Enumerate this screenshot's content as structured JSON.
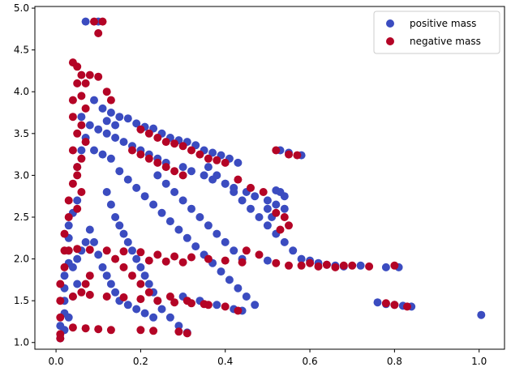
{
  "chart_data": {
    "type": "scatter",
    "title": "",
    "xlabel": "",
    "ylabel": "",
    "xlim": [
      -0.05,
      1.06
    ],
    "ylim": [
      0.92,
      5.02
    ],
    "xticks": [
      0.0,
      0.2,
      0.4,
      0.6,
      0.8,
      1.0
    ],
    "xtick_labels": [
      "0.0",
      "0.2",
      "0.4",
      "0.6",
      "0.8",
      "1.0"
    ],
    "yticks": [
      1.0,
      1.5,
      2.0,
      2.5,
      3.0,
      3.5,
      4.0,
      4.5,
      5.0
    ],
    "ytick_labels": [
      "1.0",
      "1.5",
      "2.0",
      "2.5",
      "3.0",
      "3.5",
      "4.0",
      "4.5",
      "5.0"
    ],
    "grid": false,
    "legend_position": "top-right",
    "series": [
      {
        "name": "positive mass",
        "color": "#3b4cc0",
        "points": [
          [
            0.07,
            4.84
          ],
          [
            0.1,
            4.84
          ],
          [
            0.09,
            3.9
          ],
          [
            0.11,
            3.8
          ],
          [
            0.13,
            3.75
          ],
          [
            0.15,
            3.7
          ],
          [
            0.17,
            3.68
          ],
          [
            0.19,
            3.62
          ],
          [
            0.21,
            3.58
          ],
          [
            0.23,
            3.56
          ],
          [
            0.25,
            3.5
          ],
          [
            0.27,
            3.45
          ],
          [
            0.29,
            3.42
          ],
          [
            0.31,
            3.4
          ],
          [
            0.33,
            3.36
          ],
          [
            0.35,
            3.3
          ],
          [
            0.37,
            3.27
          ],
          [
            0.39,
            3.24
          ],
          [
            0.41,
            3.2
          ],
          [
            0.43,
            3.15
          ],
          [
            0.08,
            3.6
          ],
          [
            0.1,
            3.55
          ],
          [
            0.12,
            3.5
          ],
          [
            0.14,
            3.45
          ],
          [
            0.16,
            3.4
          ],
          [
            0.18,
            3.35
          ],
          [
            0.2,
            3.3
          ],
          [
            0.22,
            3.25
          ],
          [
            0.24,
            3.2
          ],
          [
            0.26,
            3.15
          ],
          [
            0.09,
            3.3
          ],
          [
            0.11,
            3.25
          ],
          [
            0.13,
            3.2
          ],
          [
            0.07,
            3.45
          ],
          [
            0.06,
            3.3
          ],
          [
            0.05,
            3.1
          ],
          [
            0.06,
            3.7
          ],
          [
            0.12,
            3.65
          ],
          [
            0.14,
            3.6
          ],
          [
            0.53,
            3.3
          ],
          [
            0.55,
            3.27
          ],
          [
            0.58,
            3.24
          ],
          [
            0.3,
            3.1
          ],
          [
            0.32,
            3.05
          ],
          [
            0.35,
            3.0
          ],
          [
            0.37,
            2.95
          ],
          [
            0.4,
            2.9
          ],
          [
            0.42,
            2.85
          ],
          [
            0.45,
            2.8
          ],
          [
            0.47,
            2.75
          ],
          [
            0.5,
            2.7
          ],
          [
            0.52,
            2.65
          ],
          [
            0.54,
            2.6
          ],
          [
            0.53,
            2.8
          ],
          [
            0.54,
            2.75
          ],
          [
            0.52,
            2.82
          ],
          [
            0.5,
            2.6
          ],
          [
            0.51,
            2.5
          ],
          [
            0.15,
            3.05
          ],
          [
            0.17,
            2.95
          ],
          [
            0.19,
            2.85
          ],
          [
            0.21,
            2.75
          ],
          [
            0.23,
            2.65
          ],
          [
            0.25,
            2.55
          ],
          [
            0.27,
            2.45
          ],
          [
            0.29,
            2.35
          ],
          [
            0.31,
            2.25
          ],
          [
            0.33,
            2.15
          ],
          [
            0.35,
            2.05
          ],
          [
            0.37,
            1.95
          ],
          [
            0.39,
            1.85
          ],
          [
            0.41,
            1.75
          ],
          [
            0.43,
            1.65
          ],
          [
            0.45,
            1.55
          ],
          [
            0.47,
            1.45
          ],
          [
            0.24,
            3.0
          ],
          [
            0.26,
            2.9
          ],
          [
            0.28,
            2.8
          ],
          [
            0.3,
            2.7
          ],
          [
            0.32,
            2.6
          ],
          [
            0.34,
            2.5
          ],
          [
            0.36,
            2.4
          ],
          [
            0.38,
            2.3
          ],
          [
            0.4,
            2.2
          ],
          [
            0.42,
            2.1
          ],
          [
            0.44,
            2.0
          ],
          [
            0.36,
            3.1
          ],
          [
            0.38,
            3.0
          ],
          [
            0.4,
            2.9
          ],
          [
            0.42,
            2.8
          ],
          [
            0.44,
            2.7
          ],
          [
            0.46,
            2.6
          ],
          [
            0.48,
            2.5
          ],
          [
            0.5,
            2.4
          ],
          [
            0.52,
            2.3
          ],
          [
            0.54,
            2.2
          ],
          [
            0.56,
            2.1
          ],
          [
            0.58,
            2.0
          ],
          [
            0.6,
            1.98
          ],
          [
            0.62,
            1.95
          ],
          [
            0.64,
            1.93
          ],
          [
            0.66,
            1.92
          ],
          [
            0.68,
            1.91
          ],
          [
            0.72,
            1.92
          ],
          [
            0.78,
            1.9
          ],
          [
            0.81,
            1.9
          ],
          [
            0.12,
            2.8
          ],
          [
            0.13,
            2.65
          ],
          [
            0.14,
            2.5
          ],
          [
            0.15,
            2.4
          ],
          [
            0.16,
            2.3
          ],
          [
            0.17,
            2.2
          ],
          [
            0.18,
            2.1
          ],
          [
            0.19,
            2.0
          ],
          [
            0.2,
            1.9
          ],
          [
            0.21,
            1.8
          ],
          [
            0.22,
            1.7
          ],
          [
            0.23,
            1.6
          ],
          [
            0.24,
            1.5
          ],
          [
            0.25,
            1.4
          ],
          [
            0.27,
            1.3
          ],
          [
            0.29,
            1.2
          ],
          [
            0.31,
            1.12
          ],
          [
            0.08,
            2.35
          ],
          [
            0.09,
            2.2
          ],
          [
            0.1,
            2.05
          ],
          [
            0.11,
            1.9
          ],
          [
            0.12,
            1.8
          ],
          [
            0.13,
            1.7
          ],
          [
            0.14,
            1.6
          ],
          [
            0.15,
            1.5
          ],
          [
            0.17,
            1.45
          ],
          [
            0.19,
            1.4
          ],
          [
            0.21,
            1.35
          ],
          [
            0.23,
            1.3
          ],
          [
            0.3,
            1.55
          ],
          [
            0.34,
            1.5
          ],
          [
            0.38,
            1.45
          ],
          [
            0.42,
            1.4
          ],
          [
            0.44,
            1.38
          ],
          [
            0.5,
            1.98
          ],
          [
            0.76,
            1.48
          ],
          [
            0.78,
            1.46
          ],
          [
            0.8,
            1.45
          ],
          [
            0.82,
            1.44
          ],
          [
            0.84,
            1.43
          ],
          [
            1.005,
            1.33
          ],
          [
            0.01,
            1.05
          ],
          [
            0.01,
            1.2
          ],
          [
            0.02,
            1.35
          ],
          [
            0.02,
            1.5
          ],
          [
            0.02,
            1.65
          ],
          [
            0.02,
            1.8
          ],
          [
            0.03,
            1.95
          ],
          [
            0.03,
            2.1
          ],
          [
            0.03,
            2.25
          ],
          [
            0.03,
            2.4
          ],
          [
            0.04,
            2.55
          ],
          [
            0.05,
            2.7
          ],
          [
            0.04,
            1.9
          ],
          [
            0.05,
            2.0
          ],
          [
            0.06,
            2.1
          ],
          [
            0.07,
            2.2
          ],
          [
            0.05,
            1.7
          ],
          [
            0.04,
            1.55
          ],
          [
            0.03,
            1.3
          ],
          [
            0.02,
            1.15
          ]
        ]
      },
      {
        "name": "negative mass",
        "color": "#b40426",
        "points": [
          [
            0.09,
            4.84
          ],
          [
            0.1,
            4.7
          ],
          [
            0.11,
            4.84
          ],
          [
            0.04,
            4.35
          ],
          [
            0.05,
            4.3
          ],
          [
            0.05,
            4.1
          ],
          [
            0.04,
            3.9
          ],
          [
            0.04,
            3.7
          ],
          [
            0.05,
            3.5
          ],
          [
            0.04,
            3.3
          ],
          [
            0.05,
            3.1
          ],
          [
            0.04,
            2.9
          ],
          [
            0.03,
            2.7
          ],
          [
            0.03,
            2.5
          ],
          [
            0.02,
            2.3
          ],
          [
            0.02,
            2.1
          ],
          [
            0.02,
            1.9
          ],
          [
            0.01,
            1.7
          ],
          [
            0.01,
            1.5
          ],
          [
            0.01,
            1.3
          ],
          [
            0.01,
            1.1
          ],
          [
            0.01,
            1.05
          ],
          [
            0.06,
            4.2
          ],
          [
            0.07,
            4.1
          ],
          [
            0.08,
            4.2
          ],
          [
            0.06,
            3.95
          ],
          [
            0.07,
            3.8
          ],
          [
            0.06,
            3.6
          ],
          [
            0.07,
            3.4
          ],
          [
            0.06,
            3.2
          ],
          [
            0.05,
            3.0
          ],
          [
            0.06,
            2.8
          ],
          [
            0.05,
            2.6
          ],
          [
            0.1,
            4.18
          ],
          [
            0.12,
            4.0
          ],
          [
            0.13,
            3.9
          ],
          [
            0.2,
            3.55
          ],
          [
            0.22,
            3.5
          ],
          [
            0.24,
            3.45
          ],
          [
            0.26,
            3.4
          ],
          [
            0.28,
            3.38
          ],
          [
            0.3,
            3.35
          ],
          [
            0.32,
            3.3
          ],
          [
            0.34,
            3.25
          ],
          [
            0.36,
            3.2
          ],
          [
            0.38,
            3.18
          ],
          [
            0.4,
            3.15
          ],
          [
            0.18,
            3.3
          ],
          [
            0.2,
            3.25
          ],
          [
            0.22,
            3.2
          ],
          [
            0.24,
            3.15
          ],
          [
            0.26,
            3.1
          ],
          [
            0.28,
            3.05
          ],
          [
            0.3,
            3.0
          ],
          [
            0.52,
            3.3
          ],
          [
            0.55,
            3.25
          ],
          [
            0.57,
            3.24
          ],
          [
            0.43,
            2.95
          ],
          [
            0.46,
            2.85
          ],
          [
            0.49,
            2.8
          ],
          [
            0.52,
            2.55
          ],
          [
            0.54,
            2.5
          ],
          [
            0.53,
            2.35
          ],
          [
            0.55,
            2.4
          ],
          [
            0.45,
            2.1
          ],
          [
            0.48,
            2.05
          ],
          [
            0.52,
            1.95
          ],
          [
            0.55,
            1.92
          ],
          [
            0.58,
            1.92
          ],
          [
            0.62,
            1.91
          ],
          [
            0.66,
            1.9
          ],
          [
            0.7,
            1.92
          ],
          [
            0.74,
            1.91
          ],
          [
            0.8,
            1.92
          ],
          [
            0.03,
            2.1
          ],
          [
            0.05,
            2.12
          ],
          [
            0.08,
            2.11
          ],
          [
            0.12,
            2.1
          ],
          [
            0.16,
            2.09
          ],
          [
            0.2,
            2.08
          ],
          [
            0.24,
            2.05
          ],
          [
            0.28,
            2.03
          ],
          [
            0.32,
            2.02
          ],
          [
            0.36,
            2.0
          ],
          [
            0.4,
            1.98
          ],
          [
            0.44,
            1.96
          ],
          [
            0.04,
            1.55
          ],
          [
            0.08,
            1.57
          ],
          [
            0.12,
            1.55
          ],
          [
            0.16,
            1.54
          ],
          [
            0.2,
            1.52
          ],
          [
            0.24,
            1.5
          ],
          [
            0.28,
            1.48
          ],
          [
            0.32,
            1.47
          ],
          [
            0.36,
            1.45
          ],
          [
            0.4,
            1.43
          ],
          [
            0.04,
            1.18
          ],
          [
            0.07,
            1.17
          ],
          [
            0.1,
            1.16
          ],
          [
            0.13,
            1.15
          ],
          [
            0.2,
            1.15
          ],
          [
            0.23,
            1.14
          ],
          [
            0.29,
            1.13
          ],
          [
            0.31,
            1.11
          ],
          [
            0.27,
            1.55
          ],
          [
            0.31,
            1.5
          ],
          [
            0.35,
            1.46
          ],
          [
            0.43,
            1.38
          ],
          [
            0.22,
            1.98
          ],
          [
            0.26,
            1.97
          ],
          [
            0.3,
            1.96
          ],
          [
            0.6,
            1.95
          ],
          [
            0.64,
            1.93
          ],
          [
            0.68,
            1.92
          ],
          [
            0.78,
            1.47
          ],
          [
            0.8,
            1.45
          ],
          [
            0.83,
            1.43
          ],
          [
            0.14,
            2.0
          ],
          [
            0.16,
            1.9
          ],
          [
            0.18,
            1.8
          ],
          [
            0.2,
            1.7
          ],
          [
            0.22,
            1.6
          ],
          [
            0.06,
            1.6
          ],
          [
            0.07,
            1.7
          ],
          [
            0.08,
            1.8
          ]
        ]
      }
    ]
  }
}
